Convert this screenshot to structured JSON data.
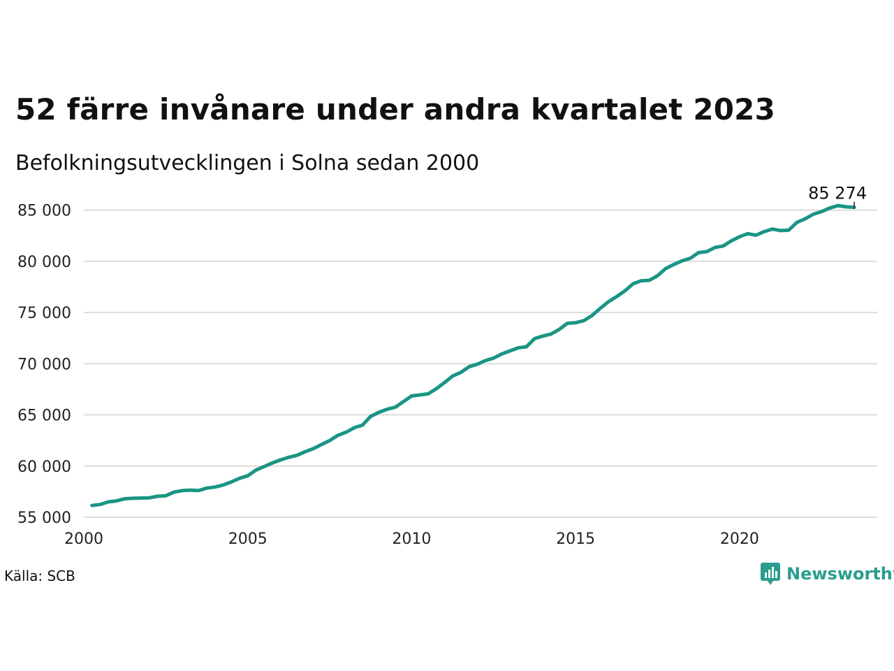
{
  "header": {
    "title": "52 färre invånare under andra kvartalet 2023",
    "subtitle": "Befolkningsutvecklingen i Solna sedan 2000"
  },
  "footer": {
    "source": "Källa: SCB",
    "brand": "Newsworthy",
    "brand_color": "#2a9d8f",
    "brand_icon": "bar-chart-speech-bubble-icon"
  },
  "chart_data": {
    "type": "line",
    "title": "52 färre invånare under andra kvartalet 2023",
    "subtitle": "Befolkningsutvecklingen i Solna sedan 2000",
    "xlabel": "",
    "ylabel": "",
    "xlim": [
      2000,
      2024.2
    ],
    "ylim": [
      55000,
      86000
    ],
    "x_ticks": [
      2000,
      2005,
      2010,
      2015,
      2020
    ],
    "y_ticks": [
      55000,
      60000,
      65000,
      70000,
      75000,
      80000,
      85000
    ],
    "y_tick_labels": [
      "55 000",
      "60 000",
      "65 000",
      "70 000",
      "75 000",
      "80 000",
      "85 000"
    ],
    "grid": "horizontal",
    "line_color": "#1a9583",
    "end_label": "85 274",
    "series": [
      {
        "x": [
          2000.25,
          2000.5,
          2000.75,
          2001.0,
          2001.25,
          2001.5,
          2001.75,
          2002.0,
          2002.25,
          2002.5,
          2002.75,
          2003.0,
          2003.25,
          2003.5,
          2003.75,
          2004.0,
          2004.25,
          2004.5,
          2004.75,
          2005.0,
          2005.25,
          2005.5,
          2005.75,
          2006.0,
          2006.25,
          2006.5,
          2006.75,
          2007.0,
          2007.25,
          2007.5,
          2007.75,
          2008.0,
          2008.25,
          2008.5,
          2008.75,
          2009.0,
          2009.25,
          2009.5,
          2009.75,
          2010.0,
          2010.25,
          2010.5,
          2010.75,
          2011.0,
          2011.25,
          2011.5,
          2011.75,
          2012.0,
          2012.25,
          2012.5,
          2012.75,
          2013.0,
          2013.25,
          2013.5,
          2013.75,
          2014.0,
          2014.25,
          2014.5,
          2014.75,
          2015.0,
          2015.25,
          2015.5,
          2015.75,
          2016.0,
          2016.25,
          2016.5,
          2016.75,
          2017.0,
          2017.25,
          2017.5,
          2017.75,
          2018.0,
          2018.25,
          2018.5,
          2018.75,
          2019.0,
          2019.25,
          2019.5,
          2019.75,
          2020.0,
          2020.25,
          2020.5,
          2020.75,
          2021.0,
          2021.25,
          2021.5,
          2021.75,
          2022.0,
          2022.25,
          2022.5,
          2022.75,
          2023.0,
          2023.25,
          2023.5
        ],
        "values": [
          56150,
          56250,
          56500,
          56600,
          56800,
          56850,
          56870,
          56900,
          57050,
          57100,
          57450,
          57600,
          57650,
          57600,
          57850,
          57950,
          58150,
          58450,
          58800,
          59050,
          59600,
          59950,
          60300,
          60600,
          60850,
          61050,
          61400,
          61700,
          62100,
          62500,
          63000,
          63300,
          63750,
          64000,
          64850,
          65250,
          65550,
          65750,
          66300,
          66850,
          66950,
          67050,
          67550,
          68150,
          68800,
          69150,
          69700,
          69950,
          70300,
          70550,
          70950,
          71250,
          71550,
          71650,
          72450,
          72700,
          72900,
          73350,
          73950,
          74000,
          74200,
          74700,
          75400,
          76050,
          76550,
          77100,
          77800,
          78100,
          78150,
          78600,
          79300,
          79700,
          80050,
          80300,
          80850,
          80950,
          81350,
          81500,
          82000,
          82400,
          82700,
          82550,
          82900,
          83150,
          83000,
          83050,
          83800,
          84150,
          84600,
          84850,
          85200,
          85450,
          85326,
          85274
        ]
      }
    ]
  }
}
